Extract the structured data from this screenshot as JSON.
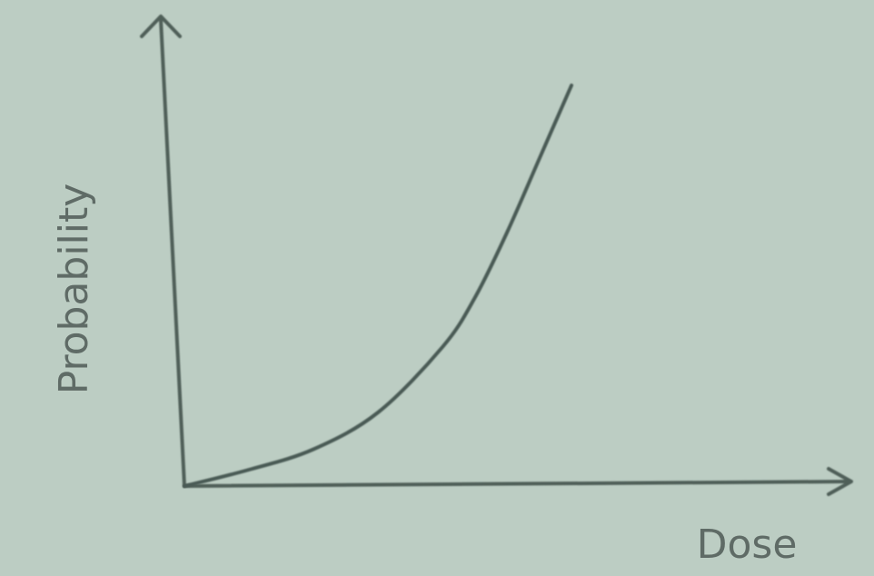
{
  "chart_data": {
    "type": "line",
    "xlabel": "Dose",
    "ylabel": "Probability",
    "xlim": [
      0,
      1
    ],
    "ylim": [
      0,
      1
    ],
    "grid": false,
    "axis_ticks": false,
    "series": [
      {
        "x": [
          0,
          0.1,
          0.2,
          0.3,
          0.4,
          0.45,
          0.5,
          0.55,
          0.6
        ],
        "y": [
          0,
          0.04,
          0.09,
          0.18,
          0.34,
          0.46,
          0.62,
          0.8,
          0.98
        ]
      }
    ]
  },
  "colors": {
    "background": "#bccdc3",
    "axis": "#4f5f59",
    "curve": "#4a5a55",
    "label": "#5f6b66"
  }
}
